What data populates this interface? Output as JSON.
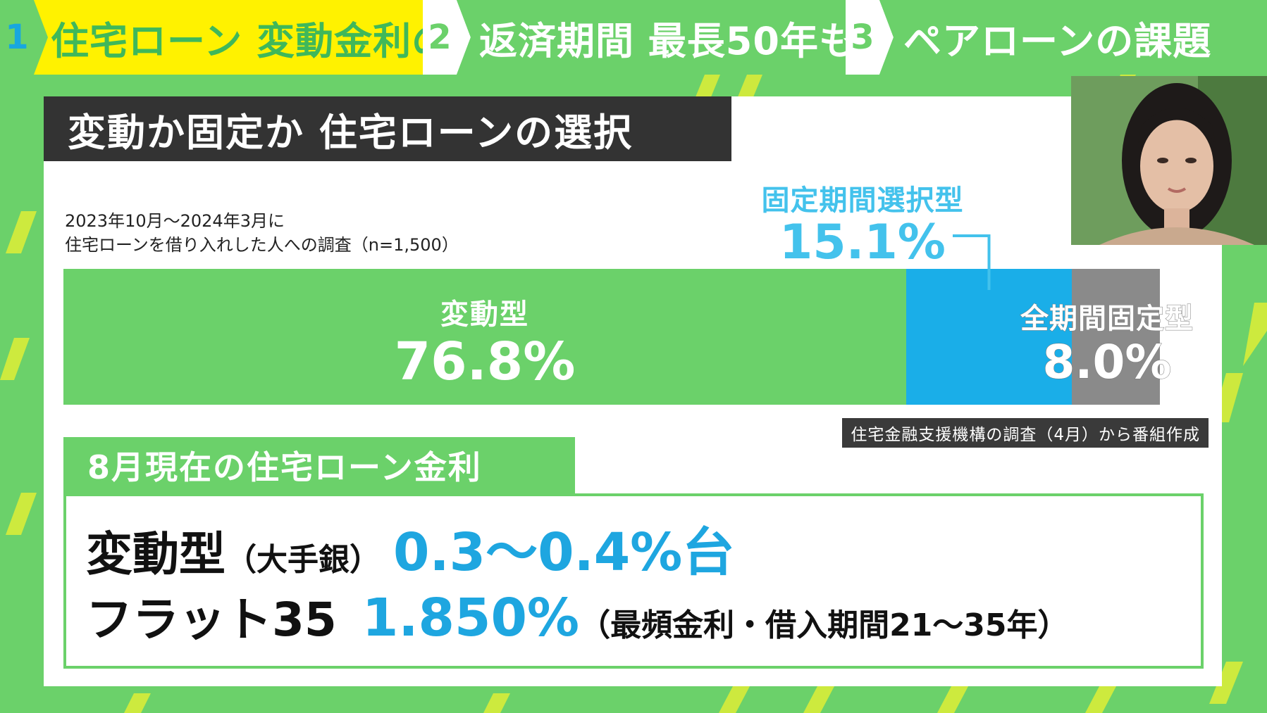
{
  "tabs": [
    {
      "num": "1",
      "label": "住宅ローン 変動金利の動向",
      "active": true
    },
    {
      "num": "2",
      "label": "返済期間 最長50年も",
      "active": false
    },
    {
      "num": "3",
      "label": "ペアローンの課題",
      "active": false
    }
  ],
  "card": {
    "title": "変動か固定か 住宅ローンの選択",
    "survey_line1": "2023年10月～2024年3月に",
    "survey_line2": "住宅ローンを借り入れした人への調査（n=1,500）",
    "source": "住宅金融支援機構の調査（4月）から番組作成"
  },
  "chart_data": {
    "type": "bar",
    "stacked": true,
    "orientation": "horizontal",
    "categories": [
      "変動型",
      "固定期間選択型",
      "全期間固定型"
    ],
    "values": [
      76.8,
      15.1,
      8.0
    ],
    "labels": [
      "76.8%",
      "15.1%",
      "8.0%"
    ],
    "colors": [
      "#6bd16a",
      "#1aaee8",
      "#8a8a8a"
    ]
  },
  "rates": {
    "heading": "8月現在の住宅ローン金利",
    "line1": {
      "name": "変動型",
      "note": "（大手銀）",
      "value": "0.3～0.4%台"
    },
    "line2": {
      "name": "フラット35",
      "value": "1.850%",
      "note": "（最頻金利・借入期間21～35年）"
    }
  },
  "colors": {
    "accent_green": "#6bd16a",
    "accent_blue": "#1ea6e0",
    "tab_active": "#fff200",
    "dark": "#333333"
  }
}
